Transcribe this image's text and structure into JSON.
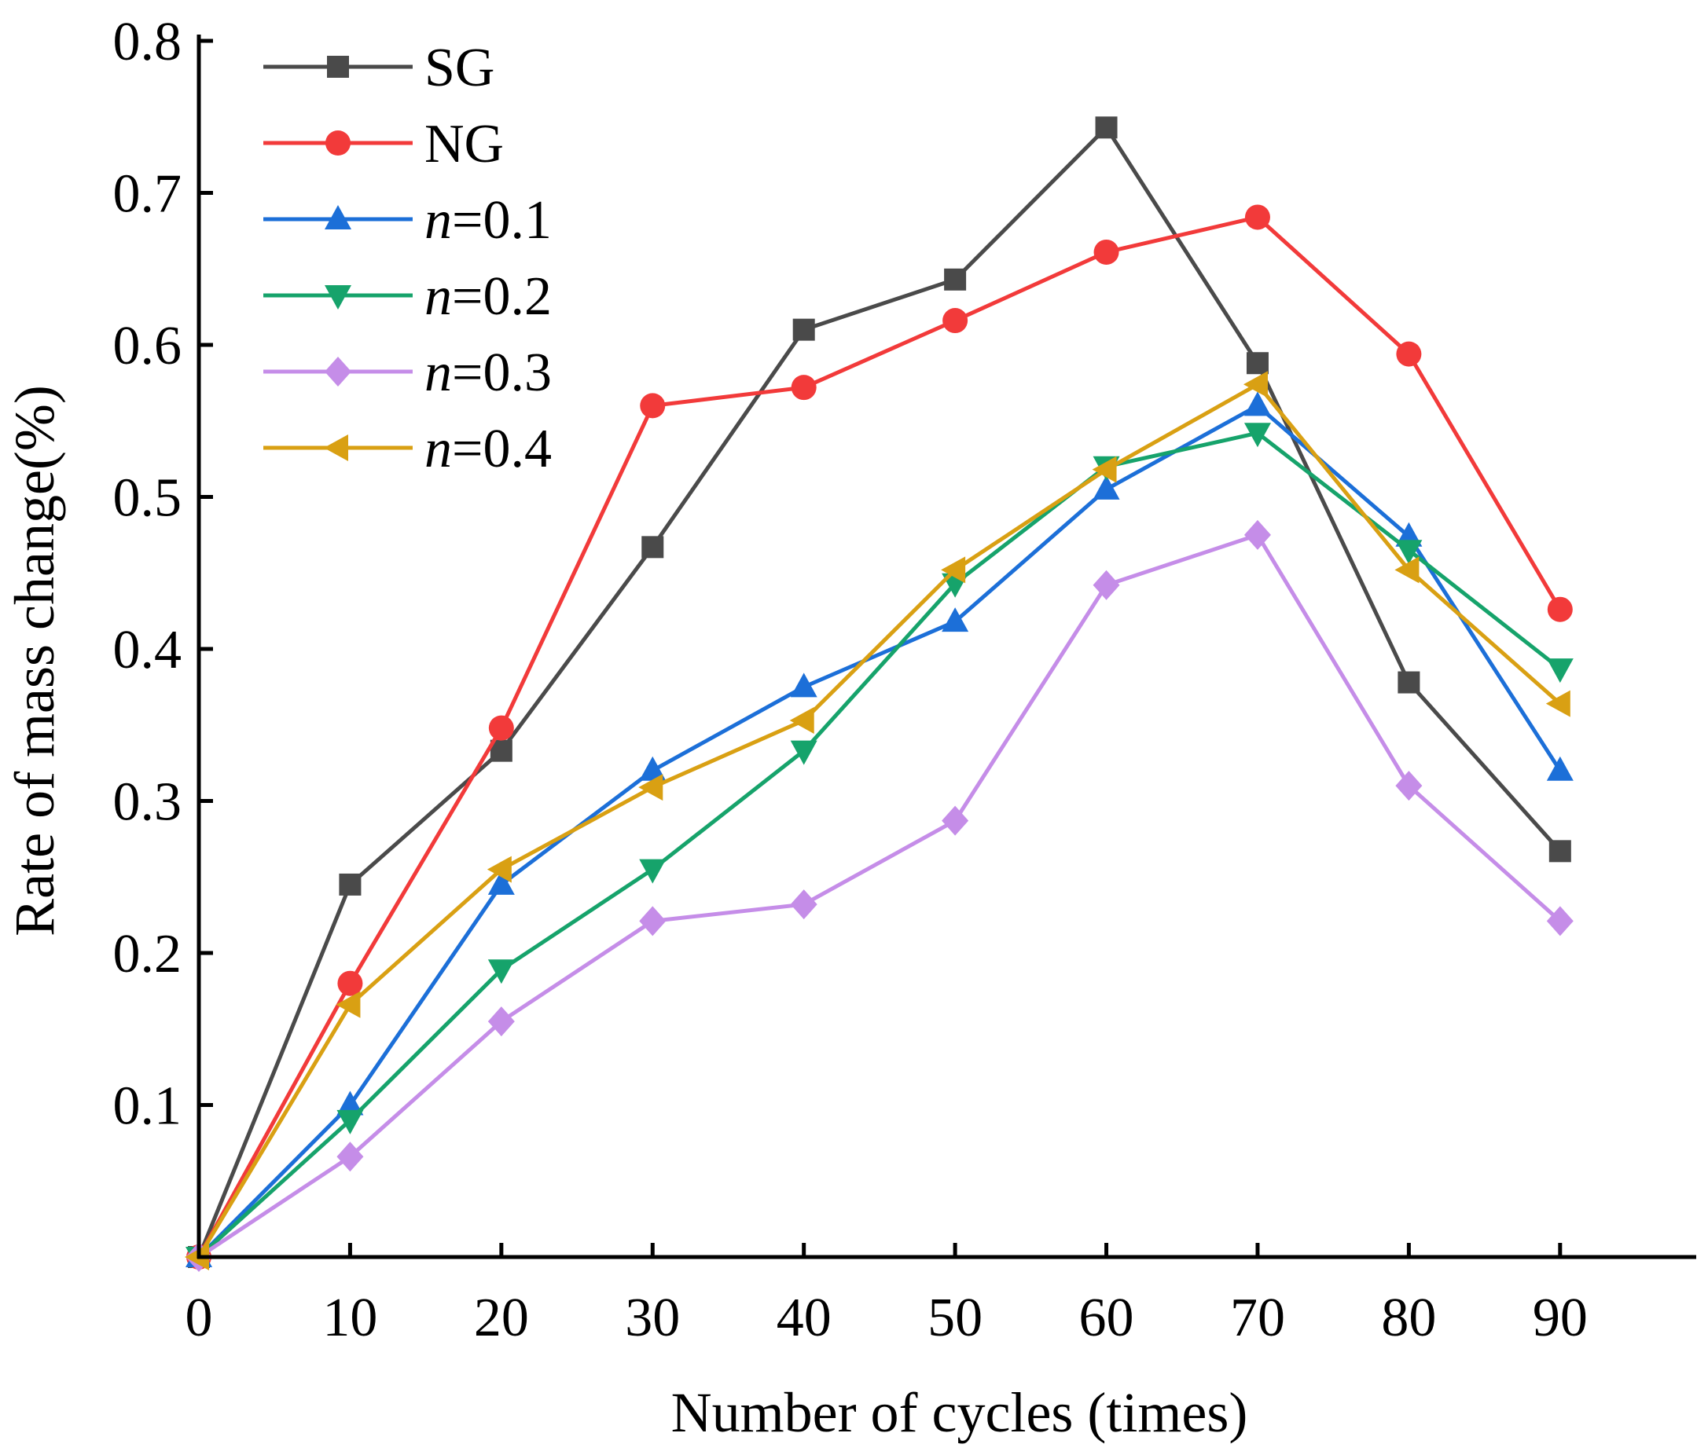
{
  "chart_data": {
    "type": "line",
    "xlabel": "Number of cycles (times)",
    "ylabel": "Rate of mass change(%)",
    "xlim": [
      0,
      99
    ],
    "ylim": [
      0,
      0.8
    ],
    "x": [
      0,
      10,
      20,
      30,
      40,
      50,
      60,
      70,
      80,
      90
    ],
    "xticks": [
      0,
      10,
      20,
      30,
      40,
      50,
      60,
      70,
      80,
      90
    ],
    "xtick_labels": [
      "0",
      "10",
      "20",
      "30",
      "40",
      "50",
      "60",
      "70",
      "80",
      "90"
    ],
    "yticks": [
      0.1,
      0.2,
      0.3,
      0.4,
      0.5,
      0.6,
      0.7,
      0.8
    ],
    "ytick_labels": [
      "0.1",
      "0.2",
      "0.3",
      "0.4",
      "0.5",
      "0.6",
      "0.7",
      "0.8"
    ],
    "grid": false,
    "legend_position": "top-left",
    "series": [
      {
        "name": "SG",
        "prefix": "",
        "value_text": "SG",
        "color": "#4a4a4a",
        "marker": "square",
        "values": [
          0,
          0.245,
          0.333,
          0.467,
          0.61,
          0.643,
          0.743,
          0.588,
          0.378,
          0.267
        ]
      },
      {
        "name": "NG",
        "prefix": "",
        "value_text": "NG",
        "color": "#f23a3a",
        "marker": "circle",
        "values": [
          0,
          0.18,
          0.348,
          0.56,
          0.572,
          0.616,
          0.661,
          0.684,
          0.594,
          0.426
        ]
      },
      {
        "name": "n=0.1",
        "prefix": "n",
        "value_text": "=0.1",
        "color": "#1c6fd8",
        "marker": "triangle-up",
        "values": [
          0,
          0.1,
          0.245,
          0.32,
          0.375,
          0.418,
          0.505,
          0.56,
          0.474,
          0.32
        ]
      },
      {
        "name": "n=0.2",
        "prefix": "n",
        "value_text": "=0.2",
        "color": "#16a36b",
        "marker": "triangle-down",
        "values": [
          0,
          0.09,
          0.189,
          0.255,
          0.333,
          0.443,
          0.52,
          0.542,
          0.465,
          0.387
        ]
      },
      {
        "name": "n=0.3",
        "prefix": "n",
        "value_text": "=0.3",
        "color": "#c58de8",
        "marker": "diamond",
        "values": [
          0,
          0.066,
          0.155,
          0.221,
          0.232,
          0.287,
          0.442,
          0.475,
          0.31,
          0.221
        ]
      },
      {
        "name": "n=0.4",
        "prefix": "n",
        "value_text": "=0.4",
        "color": "#d9a013",
        "marker": "triangle-left",
        "values": [
          0,
          0.166,
          0.255,
          0.309,
          0.353,
          0.452,
          0.518,
          0.574,
          0.452,
          0.364
        ]
      }
    ]
  }
}
